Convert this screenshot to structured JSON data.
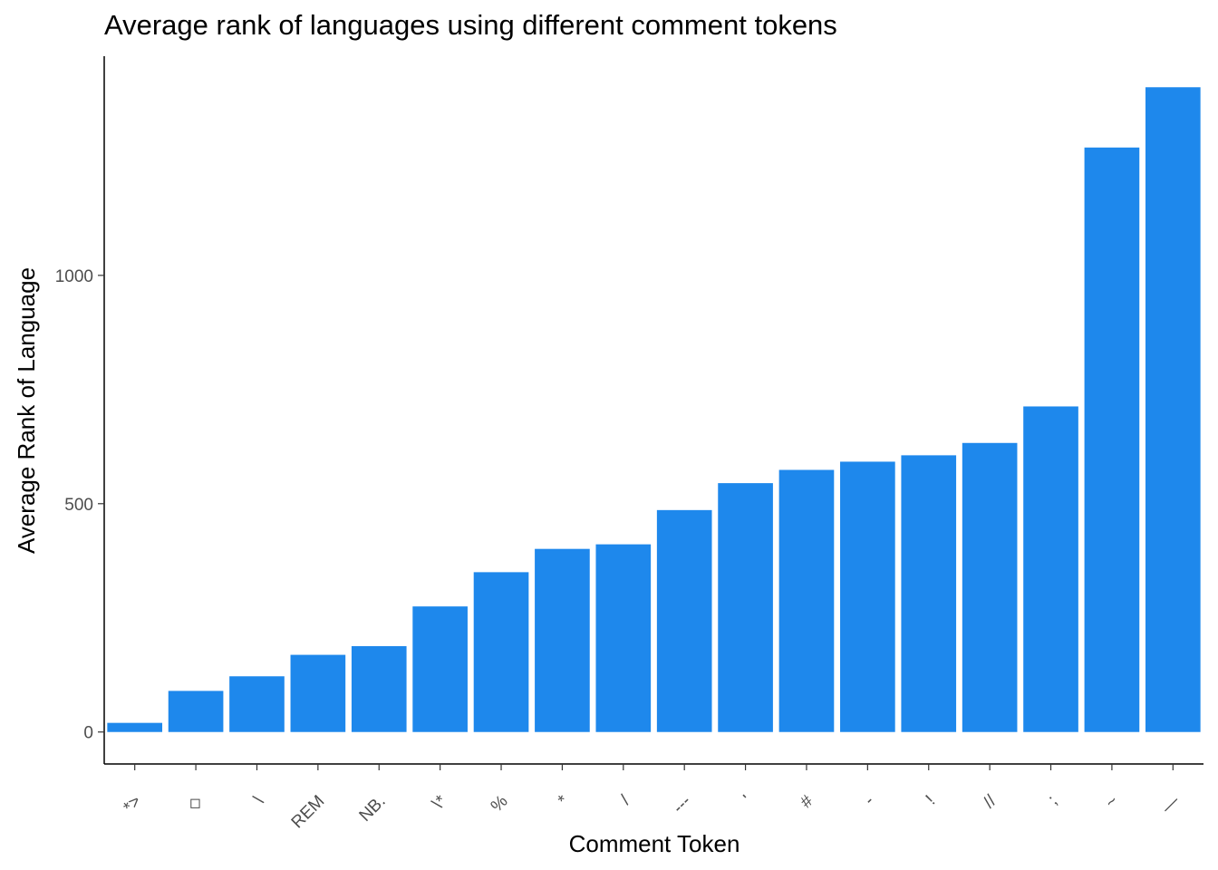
{
  "chart_data": {
    "type": "bar",
    "title": "Average rank of languages using different comment tokens",
    "xlabel": "Comment Token",
    "ylabel": "Average Rank of Language",
    "categories": [
      "*>",
      "◇",
      "\\",
      "REM",
      "NB.",
      "\\*",
      "%",
      "*",
      "/",
      "---",
      "'",
      "#",
      "-",
      "!",
      "//",
      ";",
      "~",
      "—"
    ],
    "values": [
      20,
      90,
      122,
      169,
      188,
      275,
      350,
      401,
      411,
      486,
      545,
      574,
      592,
      606,
      633,
      713,
      1280,
      1412
    ],
    "yticks": [
      0,
      500,
      1000
    ],
    "ylim": [
      -70,
      1480
    ],
    "bar_color": "#1e88ec",
    "grid": false,
    "legend": "none"
  }
}
